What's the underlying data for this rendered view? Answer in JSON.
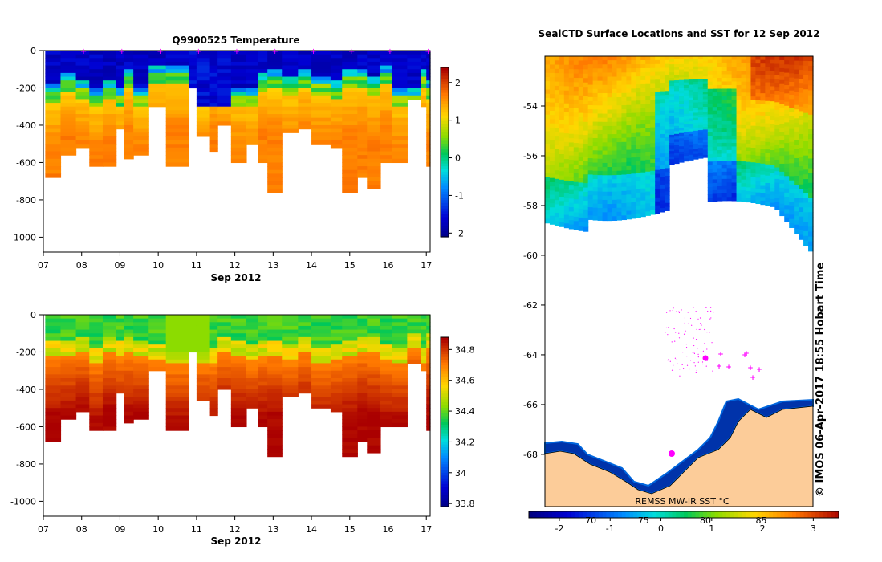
{
  "chart_data": [
    {
      "type": "heatmap",
      "title": "Q9900525  Temperature",
      "xlabel": "Sep 2012",
      "ylabel": "",
      "x_ticks": [
        "07",
        "08",
        "09",
        "10",
        "11",
        "12",
        "13",
        "14",
        "15",
        "16",
        "17"
      ],
      "y_ticks": [
        "0",
        "-200",
        "-400",
        "-600",
        "-800",
        "-1000"
      ],
      "xlim": [
        7,
        17.1
      ],
      "ylim": [
        -1080,
        0
      ],
      "colorbar": {
        "ticks": [
          "2",
          "1",
          "0",
          "-1",
          "-2"
        ],
        "range": [
          -2.1,
          2.4
        ]
      },
      "profile_markers": [
        8,
        9,
        10,
        11,
        12,
        13,
        14,
        15,
        16,
        17
      ],
      "marker_color": "#ff00ff"
    },
    {
      "type": "heatmap",
      "title": "",
      "xlabel": "Sep 2012",
      "ylabel": "",
      "x_ticks": [
        "07",
        "08",
        "09",
        "10",
        "11",
        "12",
        "13",
        "14",
        "15",
        "16",
        "17"
      ],
      "y_ticks": [
        "0",
        "-200",
        "-400",
        "-600",
        "-800",
        "-1000"
      ],
      "xlim": [
        7,
        17.1
      ],
      "ylim": [
        -1080,
        0
      ],
      "colorbar": {
        "ticks": [
          "34.8",
          "34.6",
          "34.4",
          "34.2",
          "34",
          "33.8"
        ],
        "range": [
          33.78,
          34.88
        ]
      }
    },
    {
      "type": "heatmap",
      "title": "SealCTD Surface Locations and SST for 12 Sep 2012",
      "y_ticks": [
        "-54",
        "-56",
        "-58",
        "-60",
        "-62",
        "-64",
        "-66",
        "-68"
      ],
      "ylim": [
        -70.1,
        -52.0
      ],
      "colorbar_label": "REMSS MW-IR SST °C",
      "colorbar": {
        "ticks": [
          "-2",
          "-1",
          "0",
          "1",
          "2",
          "3"
        ],
        "range": [
          -2.6,
          3.5
        ]
      },
      "longitude_ticks": [
        "70",
        "75",
        "80",
        "85"
      ],
      "side_label": "© IMOS 06-Apr-2017 18:55 Hobart Time",
      "land_color": "#fccc99",
      "marker_color": "#ff00ff"
    }
  ]
}
